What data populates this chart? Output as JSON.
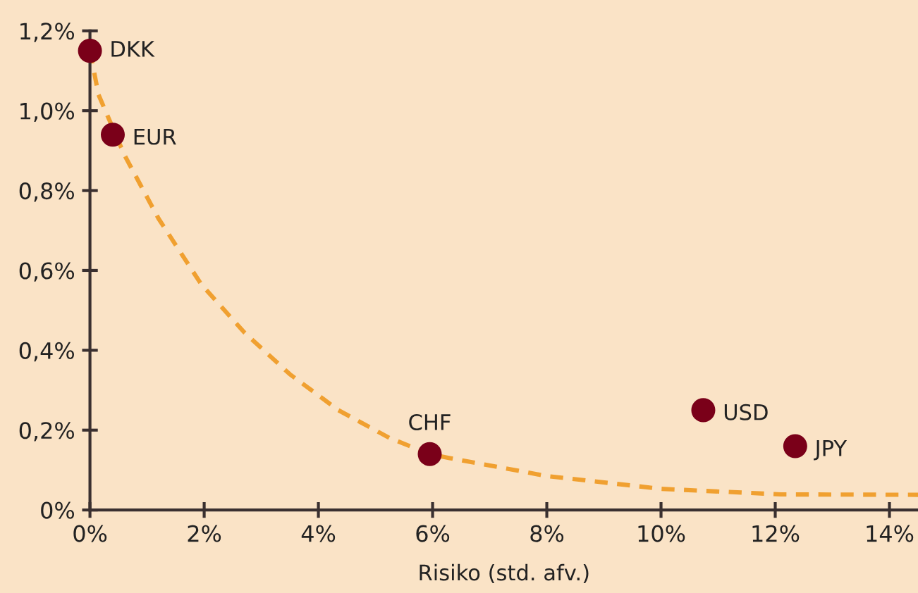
{
  "chart_data": {
    "type": "scatter",
    "xlabel": "Risiko (std. afv.)",
    "xlim": [
      0,
      14.5
    ],
    "ylim": [
      0,
      1.2
    ],
    "xticks": [
      {
        "value": 0,
        "label": "0%"
      },
      {
        "value": 2,
        "label": "2%"
      },
      {
        "value": 4,
        "label": "4%"
      },
      {
        "value": 6,
        "label": "6%"
      },
      {
        "value": 8,
        "label": "8%"
      },
      {
        "value": 10,
        "label": "10%"
      },
      {
        "value": 12,
        "label": "12%"
      },
      {
        "value": 14,
        "label": "14%"
      }
    ],
    "yticks": [
      {
        "value": 0,
        "label": "0%"
      },
      {
        "value": 0.2,
        "label": "0,2%"
      },
      {
        "value": 0.4,
        "label": "0,4%"
      },
      {
        "value": 0.6,
        "label": "0,6%"
      },
      {
        "value": 0.8,
        "label": "0,8%"
      },
      {
        "value": 1.0,
        "label": "1,0%"
      },
      {
        "value": 1.2,
        "label": "1,2%"
      }
    ],
    "grid": false,
    "legend": false,
    "series": [
      {
        "type": "line",
        "color": "#f0a030",
        "line_style": "dashed",
        "marker": "none",
        "x": [
          0,
          0.15,
          0.6,
          1.2,
          1.95,
          2.7,
          3.5,
          4.35,
          5.25,
          5.95,
          6.3,
          8.0,
          10.0,
          12.1,
          14.5
        ],
        "values": [
          1.15,
          1.04,
          0.89,
          0.73,
          0.565,
          0.445,
          0.34,
          0.25,
          0.18,
          0.14,
          0.13,
          0.085,
          0.053,
          0.039,
          0.038
        ]
      },
      {
        "color": "#7a0019",
        "marker": "circle",
        "x": [
          0,
          0.4,
          5.95,
          10.74,
          12.35
        ],
        "values": [
          1.15,
          0.94,
          0.14,
          0.25,
          0.16
        ]
      }
    ],
    "annotations": [
      {
        "text": "DKK",
        "x": 0,
        "y": 1.15
      },
      {
        "text": "EUR",
        "x": 0.4,
        "y": 0.94
      },
      {
        "text": "CHF",
        "x": 5.95,
        "y": 0.14
      },
      {
        "text": "USD",
        "x": 10.74,
        "y": 0.25
      },
      {
        "text": "JPY",
        "x": 12.35,
        "y": 0.16
      }
    ]
  }
}
